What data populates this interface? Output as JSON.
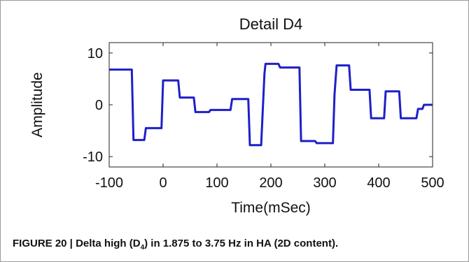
{
  "caption": {
    "label": "FIGURE 20 | ",
    "text_before_sub": "Delta high (D",
    "subscript": "4",
    "text_after_sub": ") in 1.875 to 3.75 Hz in HA (2D content)."
  },
  "chart_data": {
    "type": "line",
    "title": "Detail D4",
    "xlabel": "Time(mSec)",
    "ylabel": "Amplitude",
    "xlim": [
      -100,
      500
    ],
    "ylim": [
      -12,
      12
    ],
    "xticks": [
      -100,
      0,
      100,
      200,
      300,
      400,
      500
    ],
    "yticks": [
      -10,
      0,
      10
    ],
    "grid": false,
    "line_color": "#1f1fc8",
    "series": [
      {
        "x": [
          -100,
          -58,
          -55,
          -35,
          -32,
          -3,
          0,
          28,
          31,
          57,
          60,
          85,
          88,
          125,
          128,
          158,
          161,
          182,
          185,
          188,
          190,
          214,
          217,
          253,
          256,
          282,
          285,
          315,
          318,
          322,
          325,
          345,
          348,
          383,
          386,
          410,
          413,
          438,
          441,
          470,
          473,
          481,
          484,
          500
        ],
        "y": [
          6.8,
          6.8,
          -6.8,
          -6.8,
          -4.5,
          -4.5,
          4.7,
          4.7,
          1.4,
          1.4,
          -1.4,
          -1.4,
          -1,
          -1,
          1.1,
          1.1,
          -7.8,
          -7.8,
          -1,
          6,
          7.9,
          7.9,
          7.2,
          7.2,
          -7,
          -7,
          -7.4,
          -7.4,
          2,
          7.6,
          7.6,
          7.6,
          2.9,
          2.9,
          -2.6,
          -2.6,
          2.6,
          2.6,
          -2.6,
          -2.6,
          -0.8,
          -0.8,
          0,
          0
        ]
      }
    ]
  }
}
